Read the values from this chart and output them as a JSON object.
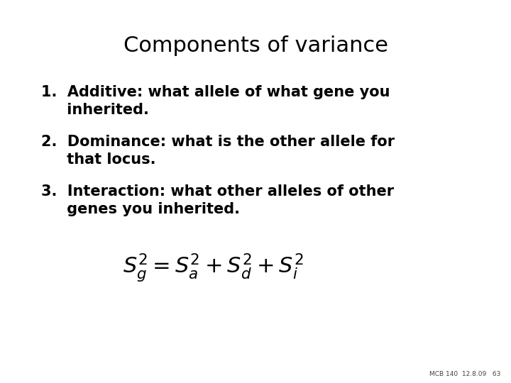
{
  "title": "Components of variance",
  "line1a": "1.  Additive: what allele of what gene you",
  "line1b": "     inherited.",
  "line2a": "2.  Dominance: what is the other allele for",
  "line2b": "     that locus.",
  "line3a": "3.  Interaction: what other alleles of other",
  "line3b": "     genes you inherited.",
  "formula": "$S_g^2 = S_a^2 + S_d^2 + S_i^2$",
  "footer": "MCB 140  12.8.09   63",
  "bg_color": "#ffffff",
  "text_color": "#000000",
  "title_fontsize": 22,
  "body_fontsize": 15,
  "formula_fontsize": 22,
  "footer_fontsize": 6.5
}
